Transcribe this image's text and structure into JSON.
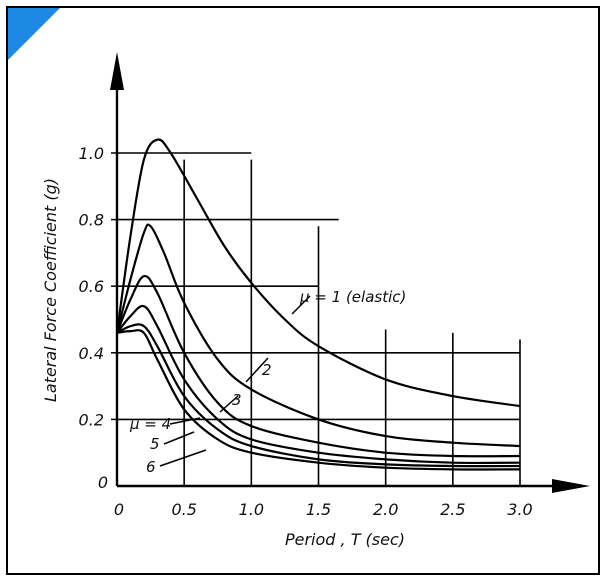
{
  "chart_data": {
    "type": "line",
    "title": "",
    "xlabel": "Period , T (sec)",
    "ylabel": "Lateral Force Coefficient (g)",
    "xlim": [
      0,
      3.0
    ],
    "ylim": [
      0,
      1.1
    ],
    "x_ticks": [
      "0",
      "0.5",
      "1.0",
      "1.5",
      "2.0",
      "2.5",
      "3.0"
    ],
    "y_ticks": [
      "0",
      "0.2",
      "0.4",
      "0.6",
      "0.8",
      "1.0"
    ],
    "grid": true,
    "series": [
      {
        "name": "μ = 1 (elastic)",
        "x": [
          0,
          0.1,
          0.2,
          0.3,
          0.4,
          0.6,
          0.8,
          1.0,
          1.25,
          1.5,
          2.0,
          2.5,
          3.0
        ],
        "y": [
          0.46,
          0.75,
          0.98,
          1.04,
          1.0,
          0.86,
          0.72,
          0.61,
          0.5,
          0.42,
          0.32,
          0.27,
          0.24
        ]
      },
      {
        "name": "2",
        "x": [
          0,
          0.1,
          0.2,
          0.25,
          0.35,
          0.5,
          0.75,
          1.0,
          1.5,
          2.0,
          2.5,
          3.0
        ],
        "y": [
          0.46,
          0.62,
          0.76,
          0.78,
          0.7,
          0.55,
          0.38,
          0.29,
          0.2,
          0.15,
          0.13,
          0.12
        ]
      },
      {
        "name": "3",
        "x": [
          0,
          0.1,
          0.2,
          0.3,
          0.5,
          0.75,
          1.0,
          1.5,
          2.0,
          2.5,
          3.0
        ],
        "y": [
          0.46,
          0.56,
          0.63,
          0.58,
          0.4,
          0.25,
          0.18,
          0.13,
          0.1,
          0.09,
          0.09
        ]
      },
      {
        "name": "μ = 4",
        "x": [
          0,
          0.1,
          0.2,
          0.3,
          0.5,
          0.75,
          1.0,
          1.5,
          2.0,
          2.5,
          3.0
        ],
        "y": [
          0.46,
          0.51,
          0.54,
          0.48,
          0.32,
          0.2,
          0.14,
          0.1,
          0.08,
          0.07,
          0.07
        ]
      },
      {
        "name": "5",
        "x": [
          0,
          0.1,
          0.2,
          0.3,
          0.5,
          0.75,
          1.0,
          1.5,
          2.0,
          2.5,
          3.0
        ],
        "y": [
          0.46,
          0.48,
          0.48,
          0.42,
          0.27,
          0.17,
          0.12,
          0.08,
          0.065,
          0.06,
          0.06
        ]
      },
      {
        "name": "6",
        "x": [
          0,
          0.1,
          0.2,
          0.3,
          0.5,
          0.75,
          1.0,
          1.5,
          2.0,
          2.5,
          3.0
        ],
        "y": [
          0.46,
          0.465,
          0.46,
          0.38,
          0.23,
          0.14,
          0.1,
          0.07,
          0.055,
          0.05,
          0.05
        ]
      }
    ],
    "annotations": [
      "μ = 1 (elastic)",
      "2",
      "3",
      "μ = 4",
      "5",
      "6"
    ]
  }
}
